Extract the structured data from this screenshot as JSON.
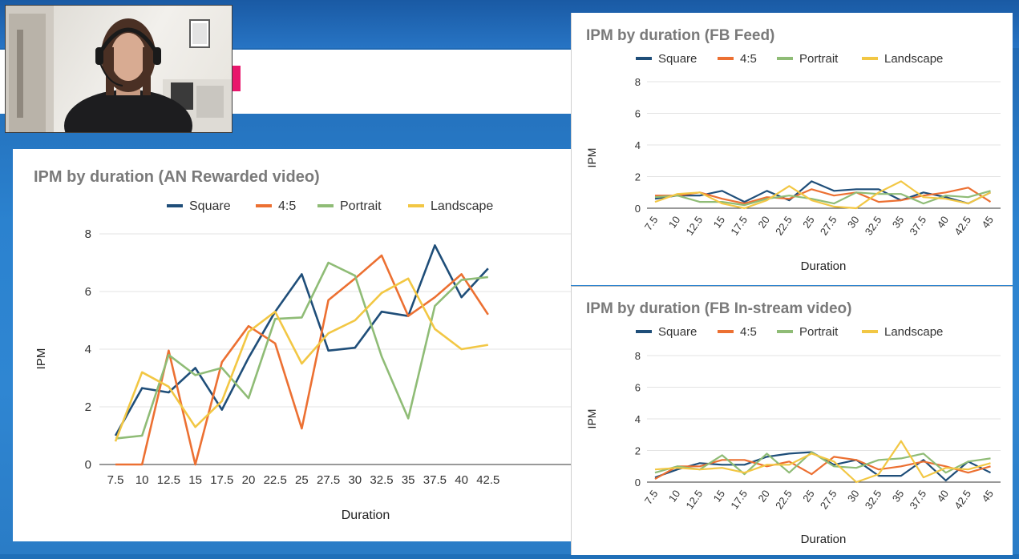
{
  "colors": {
    "Square": "#1f4e79",
    "4:5": "#ec7032",
    "Portrait": "#8fbc76",
    "Landscape": "#f2c744"
  },
  "chart_data": [
    {
      "id": "main",
      "type": "line",
      "title": "IPM by duration (AN Rewarded video)",
      "xlabel": "Duration",
      "ylabel": "IPM",
      "ylim": [
        0,
        8
      ],
      "yticks": [
        "0",
        "2",
        "4",
        "6",
        "8"
      ],
      "categories": [
        "7.5",
        "10",
        "12.5",
        "15",
        "17.5",
        "20",
        "22.5",
        "25",
        "27.5",
        "30",
        "32.5",
        "35",
        "37.5",
        "40",
        "42.5"
      ],
      "grid": true,
      "legend_position": "top",
      "series": [
        {
          "name": "Square",
          "values": [
            1.0,
            2.65,
            2.5,
            3.35,
            1.9,
            3.7,
            5.3,
            6.6,
            3.95,
            4.05,
            5.3,
            5.15,
            7.6,
            5.8,
            6.8
          ]
        },
        {
          "name": "4:5",
          "values": [
            0.0,
            0.0,
            3.95,
            0.0,
            3.55,
            4.8,
            4.2,
            1.25,
            5.7,
            6.45,
            7.25,
            5.15,
            5.8,
            6.6,
            5.2
          ]
        },
        {
          "name": "Portrait",
          "values": [
            0.9,
            1.0,
            3.8,
            3.1,
            3.35,
            2.3,
            5.05,
            5.1,
            7.0,
            6.55,
            3.75,
            1.6,
            5.5,
            6.4,
            6.5
          ]
        },
        {
          "name": "Landscape",
          "values": [
            0.8,
            3.2,
            2.7,
            1.3,
            2.2,
            4.6,
            5.3,
            3.5,
            4.55,
            5.0,
            5.95,
            6.45,
            4.7,
            4.0,
            4.15
          ]
        }
      ]
    },
    {
      "id": "tr",
      "type": "line",
      "title": "IPM by duration (FB Feed)",
      "xlabel": "Duration",
      "ylabel": "IPM",
      "ylim": [
        0,
        8
      ],
      "yticks": [
        "0",
        "2",
        "4",
        "6",
        "8"
      ],
      "categories": [
        "7.5",
        "10",
        "12.5",
        "15",
        "17.5",
        "20",
        "22.5",
        "25",
        "27.5",
        "30",
        "32.5",
        "35",
        "37.5",
        "40",
        "42.5",
        "45"
      ],
      "grid": true,
      "legend_position": "top",
      "series": [
        {
          "name": "Square",
          "values": [
            0.6,
            0.8,
            0.8,
            1.1,
            0.4,
            1.1,
            0.5,
            1.7,
            1.1,
            1.2,
            1.2,
            0.5,
            1.0,
            0.7,
            0.3,
            1.0
          ]
        },
        {
          "name": "4:5",
          "values": [
            0.8,
            0.8,
            1.0,
            0.6,
            0.3,
            0.7,
            0.6,
            1.2,
            0.8,
            1.0,
            0.4,
            0.5,
            0.8,
            1.0,
            1.3,
            0.4
          ]
        },
        {
          "name": "Portrait",
          "values": [
            0.7,
            0.8,
            0.4,
            0.4,
            0.2,
            0.6,
            0.8,
            0.6,
            0.3,
            1.0,
            0.9,
            0.9,
            0.3,
            0.8,
            0.7,
            1.1
          ]
        },
        {
          "name": "Landscape",
          "values": [
            0.4,
            0.9,
            1.0,
            0.3,
            0.0,
            0.5,
            1.4,
            0.5,
            0.1,
            0.0,
            1.0,
            1.7,
            0.7,
            0.6,
            0.3,
            1.0
          ]
        }
      ]
    },
    {
      "id": "br",
      "type": "line",
      "title": "IPM by duration (FB In-stream video)",
      "xlabel": "Duration",
      "ylabel": "IPM",
      "ylim": [
        0,
        8
      ],
      "yticks": [
        "0",
        "2",
        "4",
        "6",
        "8"
      ],
      "categories": [
        "7.5",
        "10",
        "12.5",
        "15",
        "17.5",
        "20",
        "22.5",
        "25",
        "27.5",
        "30",
        "32.5",
        "35",
        "37.5",
        "40",
        "42.5",
        "45"
      ],
      "grid": true,
      "legend_position": "top",
      "series": [
        {
          "name": "Square",
          "values": [
            0.3,
            0.8,
            1.2,
            1.1,
            1.1,
            1.6,
            1.8,
            1.9,
            1.1,
            1.4,
            0.4,
            0.4,
            1.4,
            0.1,
            1.3,
            0.6
          ]
        },
        {
          "name": "4:5",
          "values": [
            0.2,
            1.0,
            1.0,
            1.4,
            1.4,
            1.0,
            1.3,
            0.5,
            1.6,
            1.4,
            0.8,
            1.0,
            1.3,
            1.0,
            0.6,
            1.0
          ]
        },
        {
          "name": "Portrait",
          "values": [
            0.6,
            1.0,
            0.8,
            1.7,
            0.5,
            1.8,
            0.6,
            1.9,
            1.0,
            0.9,
            1.4,
            1.5,
            1.8,
            0.6,
            1.3,
            1.5
          ]
        },
        {
          "name": "Landscape",
          "values": [
            0.8,
            0.9,
            0.8,
            0.9,
            0.6,
            1.1,
            1.1,
            1.8,
            1.3,
            0.0,
            0.5,
            2.6,
            0.3,
            0.9,
            0.8,
            1.2
          ]
        }
      ]
    }
  ]
}
